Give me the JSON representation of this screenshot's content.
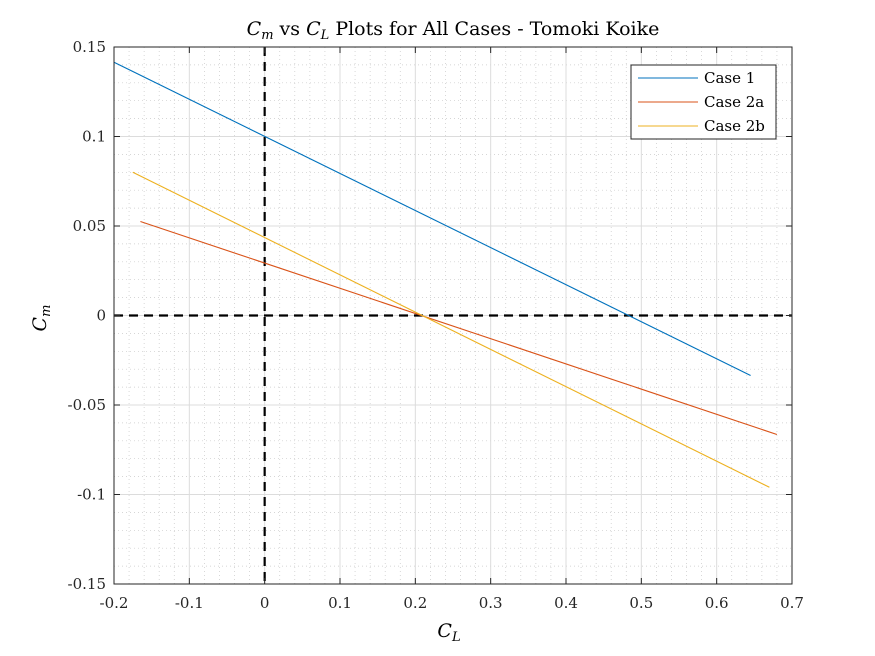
{
  "chart_data": {
    "type": "line",
    "title_parts": {
      "pre": "C",
      "pre_sub": "m",
      "mid": " vs ",
      "mid_var": "C",
      "mid_sub": "L",
      "post": " Plots for All Cases - Tomoki Koike"
    },
    "xlabel": {
      "var": "C",
      "sub": "L"
    },
    "ylabel": {
      "var": "C",
      "sub": "m"
    },
    "xlim": [
      -0.2,
      0.7
    ],
    "ylim": [
      -0.15,
      0.15
    ],
    "xticks": [
      "-0.2",
      "-0.1",
      "0",
      "0.1",
      "0.2",
      "0.3",
      "0.4",
      "0.5",
      "0.6",
      "0.7"
    ],
    "yticks": [
      "0.15",
      "0.1",
      "0.05",
      "0",
      "-0.05",
      "-0.1",
      "-0.15"
    ],
    "grid": true,
    "minor_grid": true,
    "legend_position": "top-right",
    "reference_lines": {
      "x": 0,
      "y": 0,
      "style": "dashed",
      "color": "#000000"
    },
    "series": [
      {
        "name": "Case 1",
        "color": "#0072BD",
        "x": [
          -0.2,
          0.645
        ],
        "y": [
          0.1415,
          -0.0335
        ]
      },
      {
        "name": "Case 2a",
        "color": "#D95319",
        "x": [
          -0.165,
          0.68
        ],
        "y": [
          0.0525,
          -0.0665
        ]
      },
      {
        "name": "Case 2b",
        "color": "#EDB120",
        "x": [
          -0.175,
          0.67
        ],
        "y": [
          0.08,
          -0.096
        ]
      }
    ]
  }
}
